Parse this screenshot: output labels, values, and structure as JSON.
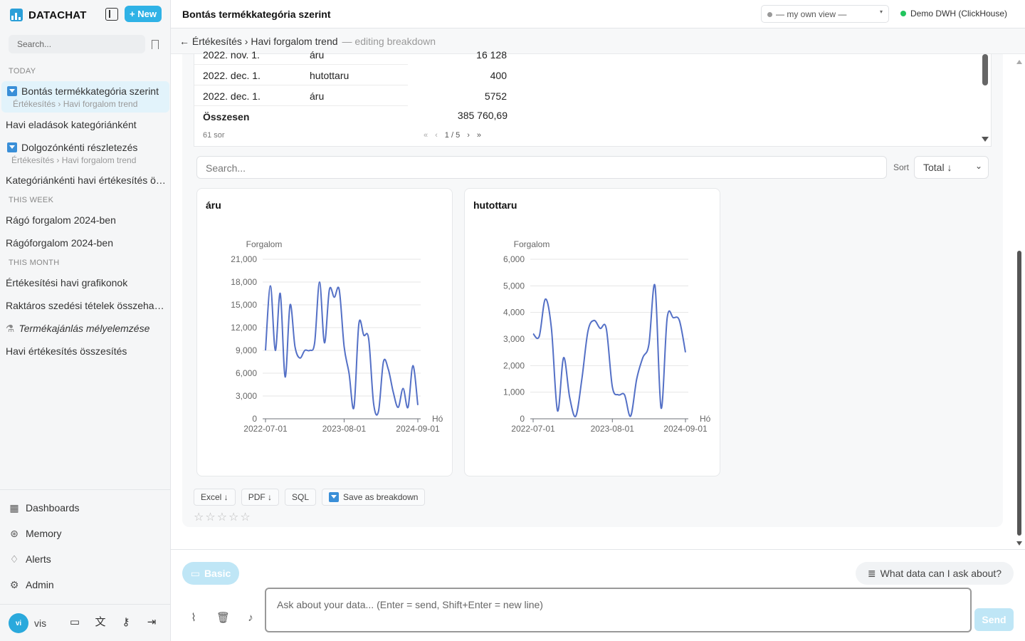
{
  "app": {
    "brand": "DATACHAT",
    "new_label": "+ New",
    "search_placeholder": "Search..."
  },
  "sidebar": {
    "sections": {
      "today": "TODAY",
      "this_week": "THIS WEEK",
      "this_month": "THIS MONTH"
    },
    "items": [
      {
        "label": "Bontás termékkategória szerint",
        "sub": "Értékesítés › Havi forgalom trend"
      },
      {
        "label": "Havi eladások kategóriánként"
      },
      {
        "label": "Dolgozónkénti részletezés",
        "sub": "Értékesítés › Havi forgalom trend"
      },
      {
        "label": "Kategóriánkénti havi értékesítés összesítés"
      },
      {
        "label": "Rágó forgalom 2024-ben"
      },
      {
        "label": "Rágóforgalom 2024-ben"
      },
      {
        "label": "Értékesítési havi grafikonok"
      },
      {
        "label": "Raktáros szedési tételek összehasonlítás"
      },
      {
        "label": "Termékajánlás mélyelemzése"
      },
      {
        "label": "Havi értékesítés összesítés"
      }
    ],
    "nav": [
      {
        "label": "Dashboards",
        "icon": "grid-icon"
      },
      {
        "label": "Memory",
        "icon": "brain-icon"
      },
      {
        "label": "Alerts",
        "icon": "bell-icon"
      },
      {
        "label": "Admin",
        "icon": "gear-icon"
      }
    ],
    "user": {
      "initials": "vi",
      "name": "vis"
    }
  },
  "header": {
    "title": "Bontás termékkategória szerint",
    "view_select": "— my own view —",
    "connection": "Demo DWH (ClickHouse)",
    "connection_color": "#22c55e"
  },
  "breadcrumb": {
    "path": "← Értékesítés › Havi forgalom trend",
    "mode": "— editing breakdown"
  },
  "table": {
    "rows": [
      {
        "date": "2022. nov. 1.",
        "category": "áru",
        "value": "16 128"
      },
      {
        "date": "2022. dec. 1.",
        "category": "hutottaru",
        "value": "400"
      },
      {
        "date": "2022. dec. 1.",
        "category": "áru",
        "value": "5752"
      }
    ],
    "total_label": "Összesen",
    "total_value": "385 760,69",
    "row_count": "61 sor",
    "page": "1 / 5"
  },
  "filter": {
    "search_placeholder": "Search...",
    "sort_label": "Sort",
    "sort_value": "Total ↓"
  },
  "cards": [
    {
      "title": "áru"
    },
    {
      "title": "hutottaru"
    }
  ],
  "chart_data": [
    {
      "type": "line",
      "title": "áru",
      "ylabel": "Forgalom",
      "xlabel": "Hó",
      "x_ticks": [
        "2022-07-01",
        "2023-08-01",
        "2024-09-01"
      ],
      "ylim": [
        0,
        21000
      ],
      "y_ticks": [
        0,
        3000,
        6000,
        9000,
        12000,
        15000,
        18000,
        21000
      ],
      "series_color": "#5470c6",
      "values": [
        9000,
        17500,
        9000,
        16500,
        5500,
        15000,
        9500,
        8000,
        9000,
        9000,
        10000,
        18000,
        10000,
        17000,
        16000,
        17000,
        9500,
        6000,
        1500,
        12500,
        11000,
        10500,
        2000,
        1000,
        7500,
        6500,
        3500,
        1500,
        4000,
        1500,
        7000,
        1800
      ]
    },
    {
      "type": "line",
      "title": "hutottaru",
      "ylabel": "Forgalom",
      "xlabel": "Hó",
      "x_ticks": [
        "2022-07-01",
        "2023-08-01",
        "2024-09-01"
      ],
      "ylim": [
        0,
        6000
      ],
      "y_ticks": [
        0,
        1000,
        2000,
        3000,
        4000,
        5000,
        6000
      ],
      "series_color": "#5470c6",
      "values": [
        3200,
        3100,
        4500,
        3400,
        300,
        2300,
        800,
        100,
        1500,
        3300,
        3700,
        3400,
        3400,
        1200,
        900,
        900,
        100,
        1500,
        2300,
        2800,
        5000,
        400,
        3800,
        3800,
        3700,
        2500
      ]
    }
  ],
  "actions": {
    "excel": "Excel ↓",
    "pdf": "PDF ↓",
    "sql": "SQL",
    "save": "Save as breakdown",
    "stars": "☆☆☆☆☆"
  },
  "composer": {
    "mode": "Basic",
    "ask_about": "What data can I ask about?",
    "placeholder": "Ask about your data... (Enter = send, Shift+Enter = new line)",
    "send": "Send"
  }
}
